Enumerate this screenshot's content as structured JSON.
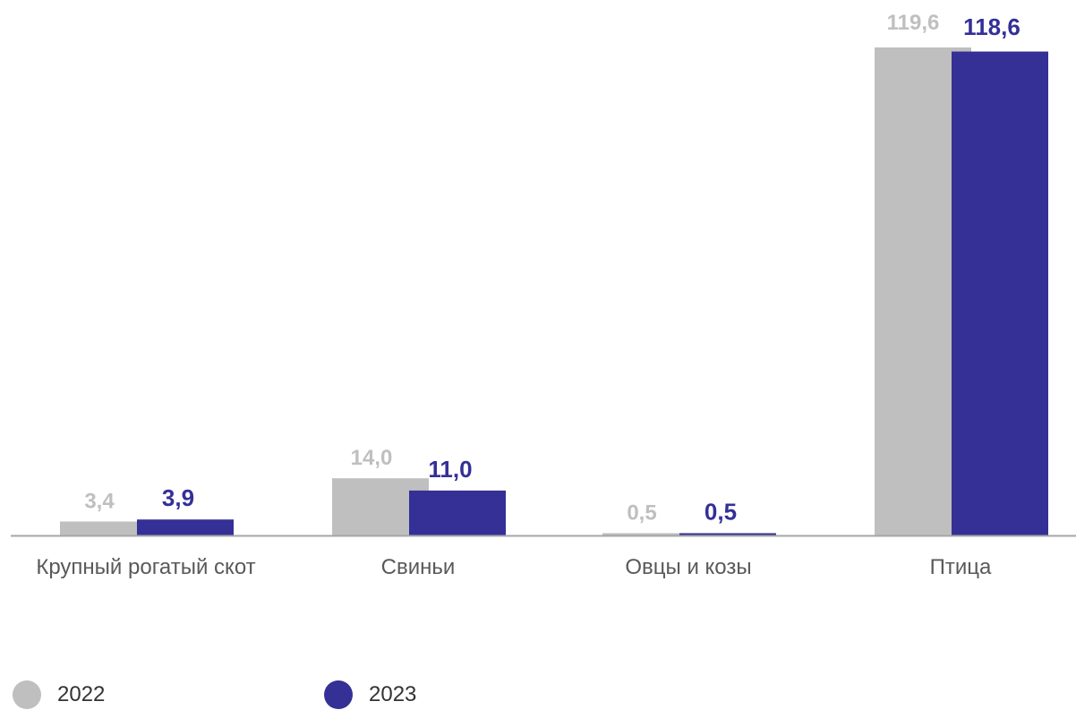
{
  "chart_data": {
    "type": "bar",
    "categories": [
      "Крупный рогатый скот",
      "Свиньи",
      "Овцы и козы",
      "Птица"
    ],
    "series": [
      {
        "name": "2022",
        "values": [
          3.4,
          14.0,
          0.5,
          119.6
        ],
        "labels": [
          "3,4",
          "14,0",
          "0,5",
          "119,6"
        ],
        "color": "#bfbfbf"
      },
      {
        "name": "2023",
        "values": [
          3.9,
          11.0,
          0.5,
          118.6
        ],
        "labels": [
          "3,9",
          "11,0",
          "0,5",
          "118,6"
        ],
        "color": "#343096"
      }
    ],
    "title": "",
    "xlabel": "",
    "ylabel": "",
    "ylim": [
      0,
      119.6
    ],
    "grid": false,
    "legend_position": "bottom-left"
  },
  "colors": {
    "series_2022": "#bfbfbf",
    "series_2023": "#343096",
    "axis": "#a6a6a6",
    "category_text": "#595959"
  }
}
